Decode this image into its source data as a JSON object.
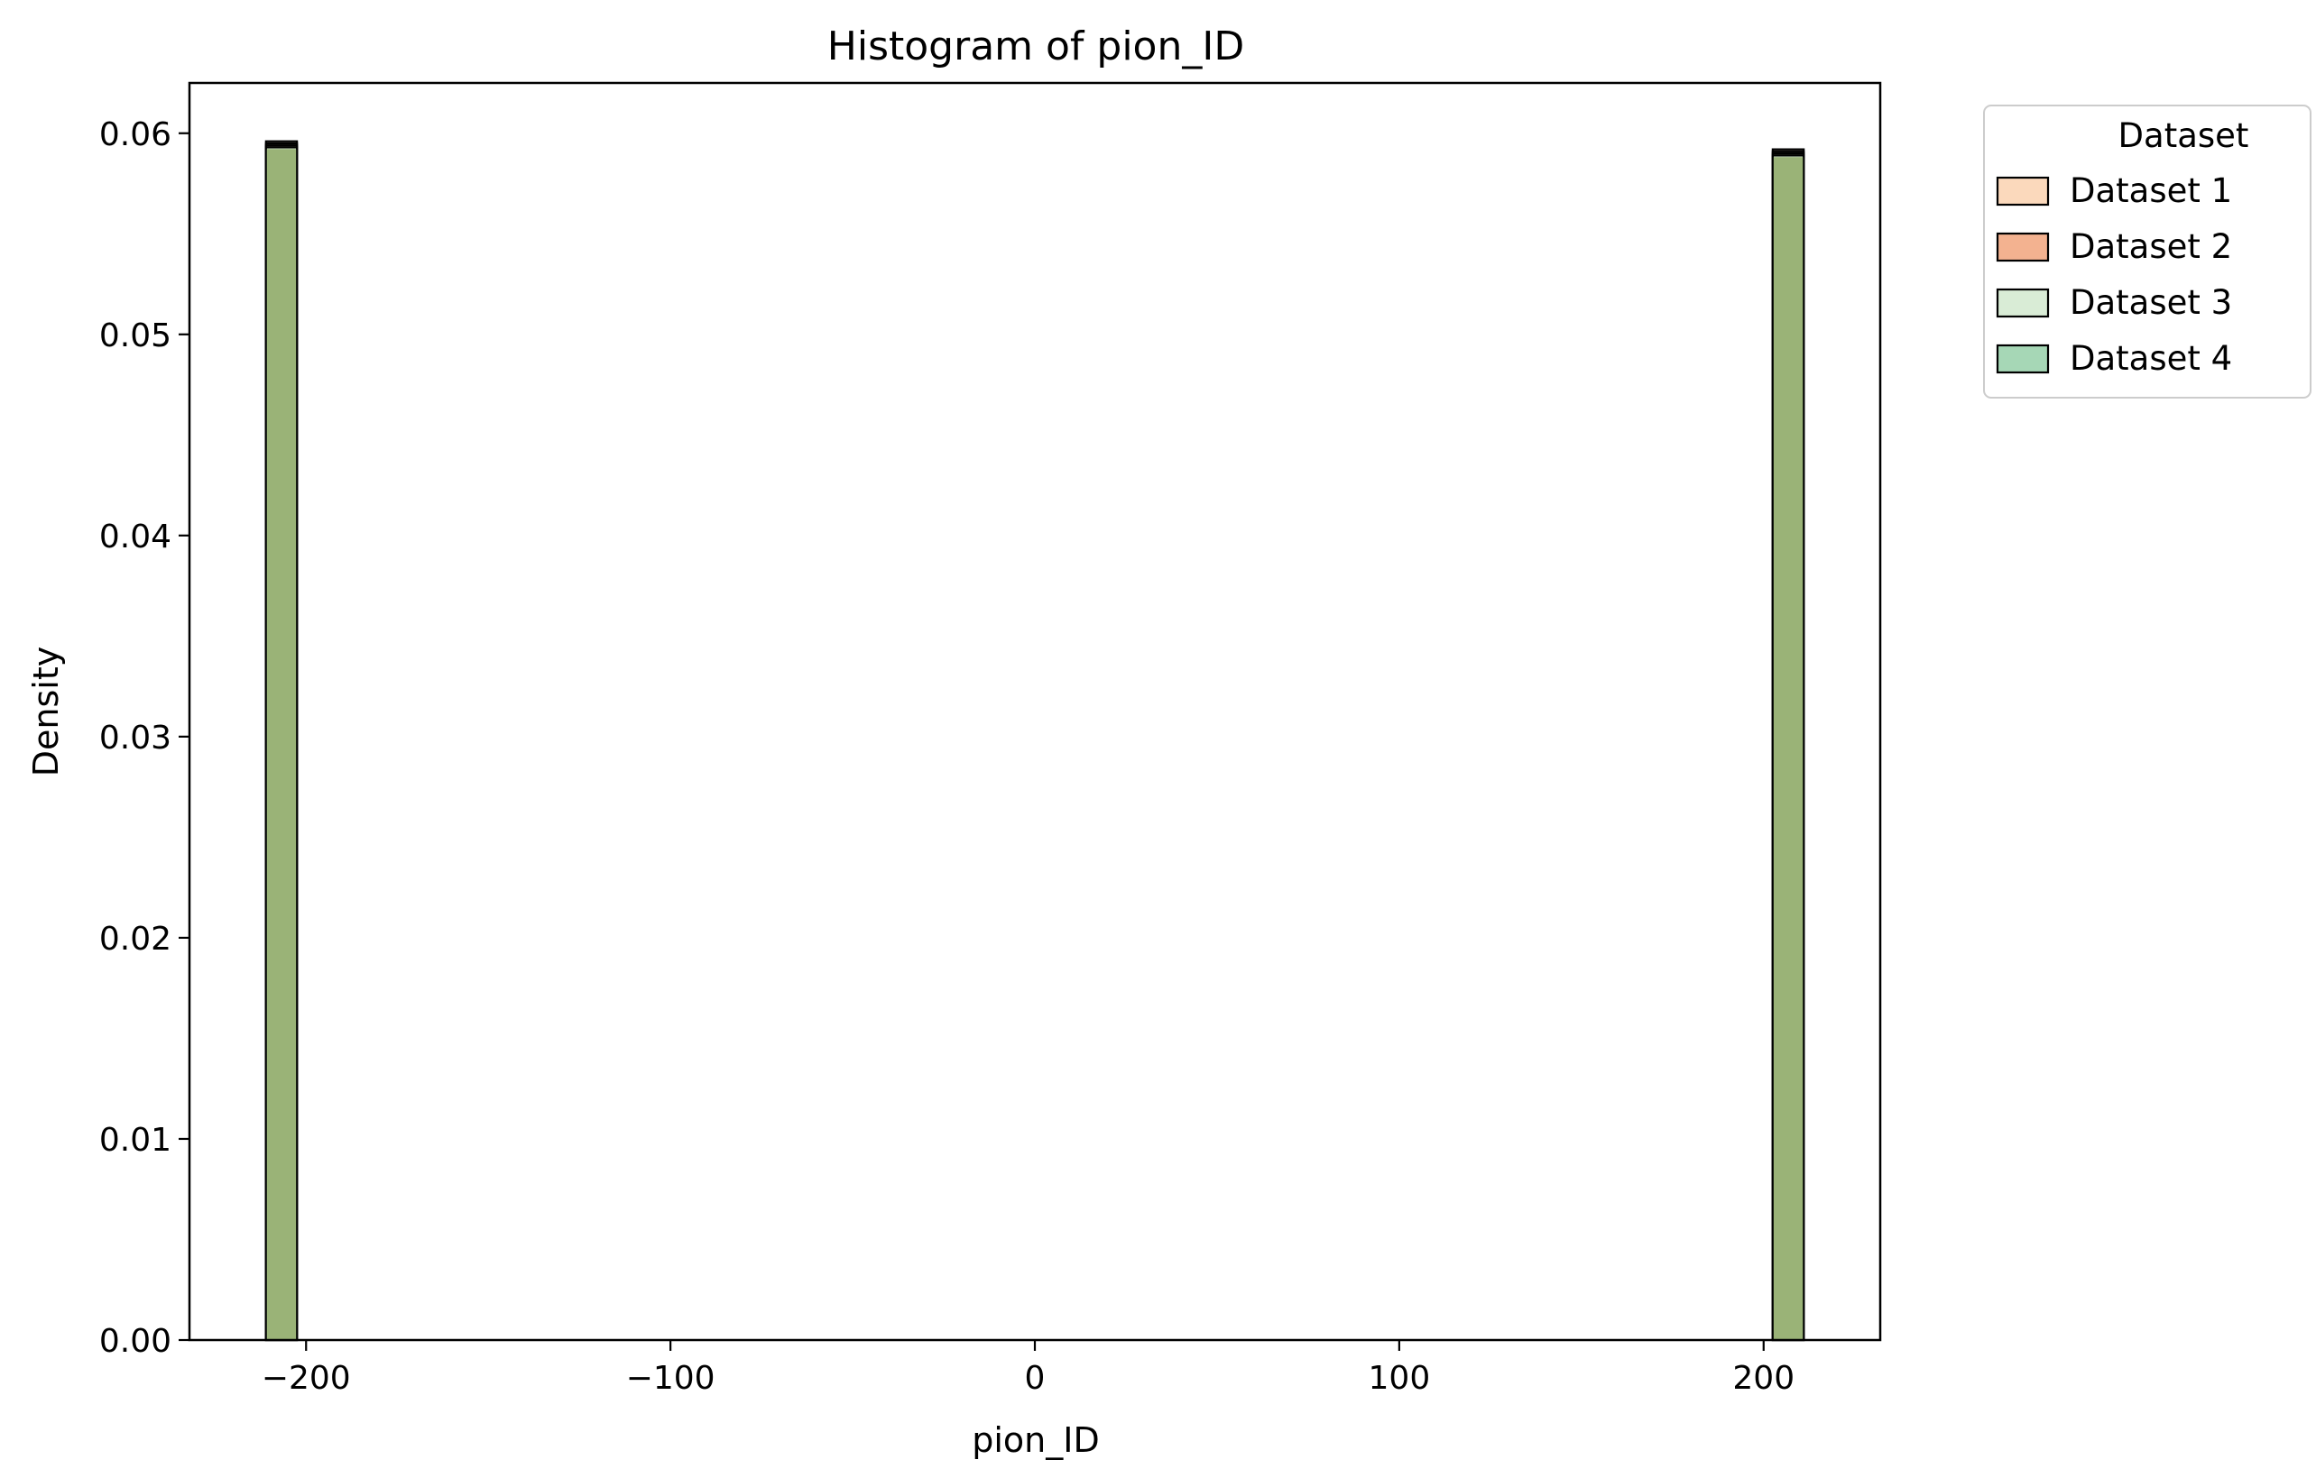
{
  "chart_data": {
    "type": "bar",
    "title": "Histogram of pion_ID",
    "xlabel": "pion_ID",
    "ylabel": "Density",
    "xlim": [
      -232,
      232
    ],
    "ylim": [
      0,
      0.0625
    ],
    "xticks": [
      -200,
      -100,
      0,
      100,
      200
    ],
    "xtick_labels": [
      "−200",
      "−100",
      "0",
      "100",
      "200"
    ],
    "yticks": [
      0.0,
      0.01,
      0.02,
      0.03,
      0.04,
      0.05,
      0.06
    ],
    "ytick_labels": [
      "0.00",
      "0.01",
      "0.02",
      "0.03",
      "0.04",
      "0.05",
      "0.06"
    ],
    "grid": false,
    "legend": {
      "title": "Dataset",
      "placement": "outside-top-right"
    },
    "bins": [
      {
        "x0": -211,
        "x1": -202.5
      },
      {
        "x0": 202.5,
        "x1": 211
      }
    ],
    "series": [
      {
        "name": "Dataset 1",
        "color": "#fbd9bc",
        "values": [
          0.0596,
          0.0592
        ]
      },
      {
        "name": "Dataset 2",
        "color": "#f3b290",
        "values": [
          0.0595,
          0.0591
        ]
      },
      {
        "name": "Dataset 3",
        "color": "#d9ecd6",
        "values": [
          0.0594,
          0.059
        ]
      },
      {
        "name": "Dataset 4",
        "color": "#a6d7b6",
        "values": [
          0.0593,
          0.0589
        ]
      }
    ],
    "overlap_color": "#9ab377"
  }
}
